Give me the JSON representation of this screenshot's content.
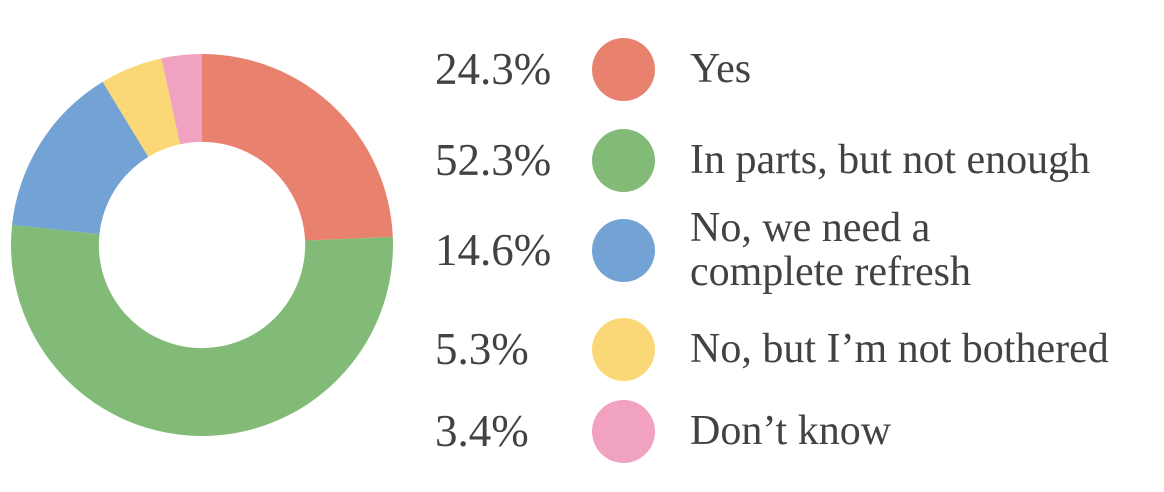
{
  "chart_data": {
    "type": "pie",
    "subtype": "donut",
    "title": "",
    "legend_position": "right",
    "start_angle_deg": 0,
    "direction": "clockwise",
    "inner_radius_ratio": 0.54,
    "text_color": "#424242",
    "series": [
      {
        "label": "Yes",
        "lines": [
          "Yes"
        ],
        "value": 24.3,
        "percent_label": "24.3%",
        "color": "#E8816D"
      },
      {
        "label": "In parts, but not enough",
        "lines": [
          "In parts, but not enough"
        ],
        "value": 52.3,
        "percent_label": "52.3%",
        "color": "#82BB78"
      },
      {
        "label": "No, we need a complete refresh",
        "lines": [
          "No, we need a",
          "complete refresh"
        ],
        "value": 14.6,
        "percent_label": "14.6%",
        "color": "#73A2D4"
      },
      {
        "label": "No, but I’m not bothered",
        "lines": [
          "No, but I’m not bothered"
        ],
        "value": 5.3,
        "percent_label": "5.3%",
        "color": "#FBD876"
      },
      {
        "label": "Don’t know",
        "lines": [
          "Don’t know"
        ],
        "value": 3.4,
        "percent_label": "3.4%",
        "color": "#F0A2C0"
      }
    ]
  }
}
